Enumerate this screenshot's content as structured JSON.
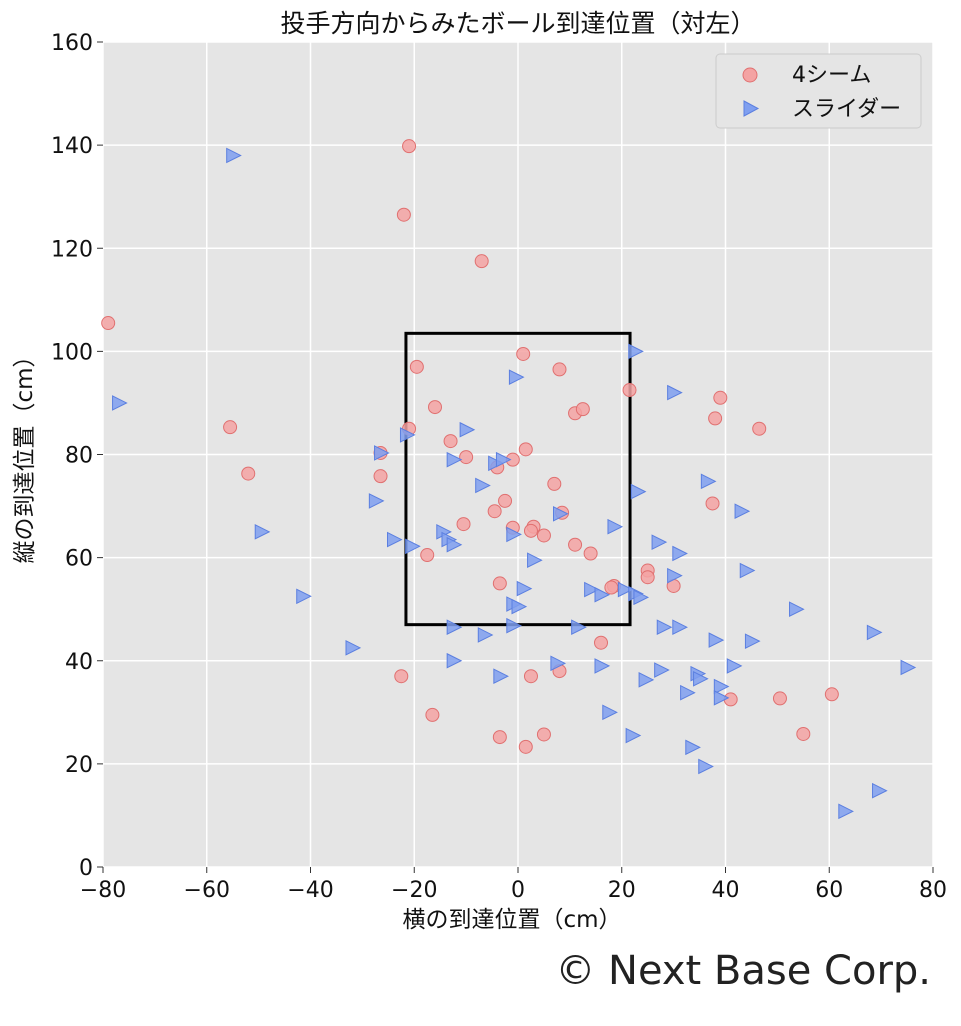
{
  "chart_data": {
    "type": "scatter",
    "title": "投手方向からみたボール到達位置（対左）",
    "xlabel": "横の到達位置（cm）",
    "ylabel": "縦の到達位置（cm）",
    "xlim": [
      -80,
      80
    ],
    "ylim": [
      0,
      160
    ],
    "xticks": [
      -80,
      -60,
      -40,
      -20,
      0,
      20,
      40,
      60,
      80
    ],
    "yticks": [
      0,
      20,
      40,
      60,
      80,
      100,
      120,
      140,
      160
    ],
    "grid": true,
    "legend_position": "top-right",
    "strike_zone": {
      "x": [
        -21.6,
        21.6
      ],
      "y": [
        47,
        103.5
      ]
    },
    "series": [
      {
        "name": "4シーム",
        "marker": "circle",
        "color": "#f4a3a3",
        "edge_color": "#e07070",
        "points": [
          [
            -79,
            105.5
          ],
          [
            -21,
            139.8
          ],
          [
            -22,
            126.5
          ],
          [
            -7,
            117.5
          ],
          [
            -55.5,
            85.3
          ],
          [
            -52,
            76.3
          ],
          [
            -19.5,
            97
          ],
          [
            -21,
            85
          ],
          [
            -16,
            89.2
          ],
          [
            -13,
            82.6
          ],
          [
            -10,
            79.5
          ],
          [
            -26.5,
            80.3
          ],
          [
            -26.5,
            75.8
          ],
          [
            -4,
            77.5
          ],
          [
            -1,
            79
          ],
          [
            1,
            99.5
          ],
          [
            1.5,
            81
          ],
          [
            8,
            96.5
          ],
          [
            11,
            88
          ],
          [
            12.5,
            88.8
          ],
          [
            21.5,
            92.5
          ],
          [
            39,
            91
          ],
          [
            38,
            87
          ],
          [
            46.5,
            85
          ],
          [
            37.5,
            70.5
          ],
          [
            7,
            74.3
          ],
          [
            -2.5,
            71
          ],
          [
            -4.5,
            69
          ],
          [
            8.5,
            68.7
          ],
          [
            -10.5,
            66.5
          ],
          [
            -1,
            65.8
          ],
          [
            3,
            66
          ],
          [
            2.5,
            65.2
          ],
          [
            5,
            64.3
          ],
          [
            11,
            62.5
          ],
          [
            14,
            60.8
          ],
          [
            -17.5,
            60.5
          ],
          [
            -3.5,
            55
          ],
          [
            18.5,
            54.5
          ],
          [
            18,
            54.2
          ],
          [
            25,
            57.5
          ],
          [
            25,
            56.2
          ],
          [
            30,
            54.5
          ],
          [
            16,
            43.5
          ],
          [
            -22.5,
            37
          ],
          [
            2.5,
            37
          ],
          [
            8,
            38
          ],
          [
            -16.5,
            29.5
          ],
          [
            -3.5,
            25.2
          ],
          [
            1.5,
            23.3
          ],
          [
            5,
            25.7
          ],
          [
            41,
            32.5
          ],
          [
            50.5,
            32.7
          ],
          [
            60.5,
            33.5
          ],
          [
            55,
            25.8
          ]
        ]
      },
      {
        "name": "スライダー",
        "marker": "triangle-right",
        "color": "#7f9ff0",
        "edge_color": "#5b7fe0",
        "points": [
          [
            -55,
            138
          ],
          [
            -77,
            90
          ],
          [
            -49.5,
            65
          ],
          [
            -41.5,
            52.5
          ],
          [
            -32,
            42.5
          ],
          [
            -27.5,
            71
          ],
          [
            -24,
            63.5
          ],
          [
            -21.5,
            83.8
          ],
          [
            -20.5,
            62.2
          ],
          [
            -26.5,
            80.3
          ],
          [
            -14.5,
            65
          ],
          [
            -13.5,
            63.5
          ],
          [
            -12.5,
            62.5
          ],
          [
            -12.5,
            79
          ],
          [
            -10,
            84.8
          ],
          [
            -7,
            74
          ],
          [
            -4.5,
            78.3
          ],
          [
            -3,
            79
          ],
          [
            -0.5,
            95
          ],
          [
            -1,
            64.5
          ],
          [
            -12.5,
            46.5
          ],
          [
            -12.5,
            40
          ],
          [
            -6.5,
            45
          ],
          [
            -3.5,
            37
          ],
          [
            -1,
            46.8
          ],
          [
            -1,
            51
          ],
          [
            0,
            50.5
          ],
          [
            1,
            54
          ],
          [
            3,
            59.5
          ],
          [
            8,
            68.5
          ],
          [
            7.5,
            39.5
          ],
          [
            11.5,
            46.5
          ],
          [
            14,
            53.8
          ],
          [
            16,
            52.8
          ],
          [
            16,
            39
          ],
          [
            17.5,
            30
          ],
          [
            18.5,
            66
          ],
          [
            20.5,
            53.8
          ],
          [
            22.5,
            53
          ],
          [
            23.5,
            52.3
          ],
          [
            22,
            25.5
          ],
          [
            22.5,
            100
          ],
          [
            23,
            72.8
          ],
          [
            24.5,
            36.3
          ],
          [
            27,
            63
          ],
          [
            28,
            46.5
          ],
          [
            27.5,
            38.2
          ],
          [
            30,
            56.5
          ],
          [
            30,
            92
          ],
          [
            31,
            60.8
          ],
          [
            31,
            46.5
          ],
          [
            32.5,
            33.8
          ],
          [
            33.5,
            23.2
          ],
          [
            34.5,
            37.5
          ],
          [
            35,
            36.5
          ],
          [
            36,
            19.5
          ],
          [
            36.5,
            74.8
          ],
          [
            38,
            44
          ],
          [
            39,
            35
          ],
          [
            39,
            32.8
          ],
          [
            41.5,
            39
          ],
          [
            43,
            69
          ],
          [
            44,
            57.5
          ],
          [
            45,
            43.8
          ],
          [
            53.5,
            50
          ],
          [
            63,
            10.8
          ],
          [
            68.5,
            45.5
          ],
          [
            69.5,
            14.8
          ],
          [
            75,
            38.7
          ]
        ]
      }
    ],
    "copyright": "© Next Base Corp."
  }
}
